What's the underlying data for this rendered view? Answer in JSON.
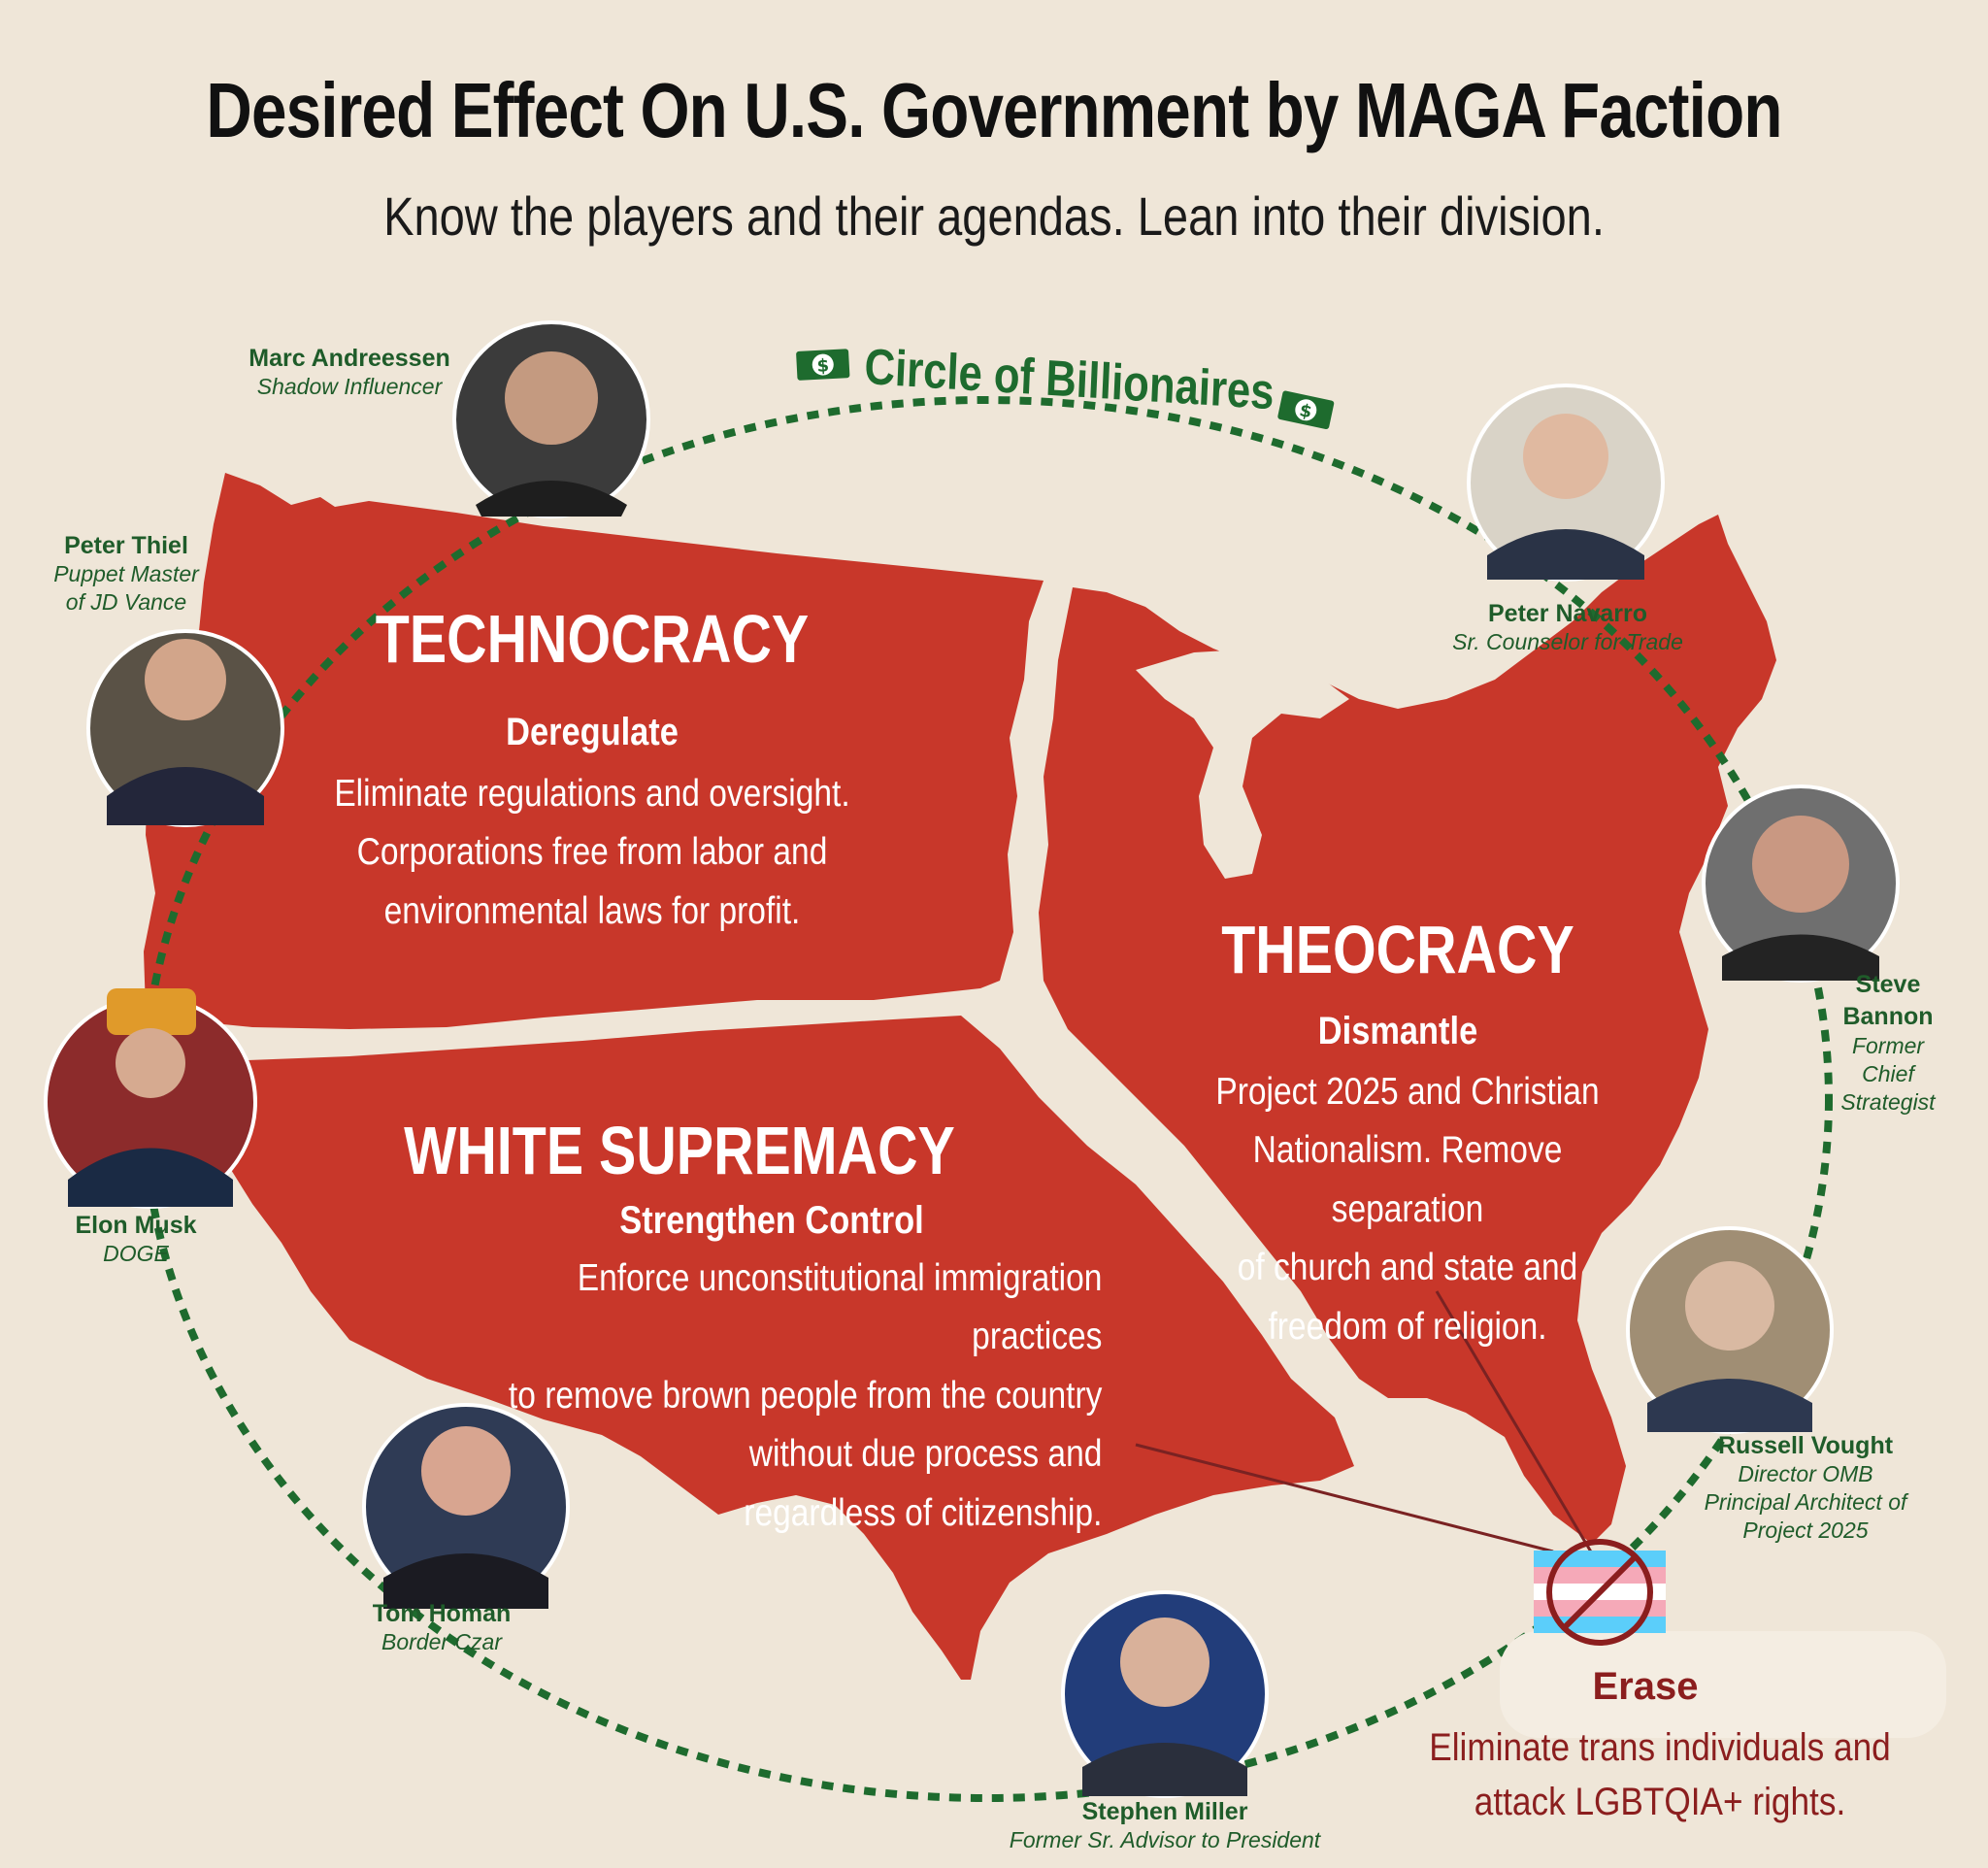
{
  "title": "Desired Effect On U.S. Government by MAGA Faction",
  "subtitle": "Know the players and their agendas. Lean into their division.",
  "circle_label": "Circle of Billionaires",
  "colors": {
    "background": "#efe6d8",
    "map_red": "#c8372a",
    "circle_green": "#1e6b2e",
    "name_green": "#1f5c2a",
    "erase_red": "#8b1e1e"
  },
  "regions": {
    "technocracy": {
      "heading": "TECHNOCRACY",
      "action": "Deregulate",
      "description": "Eliminate regulations and oversight.\nCorporations free from labor and\nenvironmental laws for profit."
    },
    "white_supremacy": {
      "heading": "WHITE SUPREMACY",
      "action": "Strengthen Control",
      "description": "Enforce unconstitutional immigration practices\nto remove brown people from the country\nwithout due process and\nregardless of citizenship."
    },
    "theocracy": {
      "heading": "THEOCRACY",
      "action": "Dismantle",
      "description": "Project 2025 and Christian\nNationalism. Remove separation\nof church and state and\nfreedom of religion."
    }
  },
  "erase": {
    "heading": "Erase",
    "description": "Eliminate trans individuals and\nattack LGBTQIA+ rights.",
    "icon": "crossed-out-trans-flag-icon"
  },
  "people": [
    {
      "id": "andreessen",
      "name": "Marc Andreessen",
      "role": "Shadow Influencer"
    },
    {
      "id": "thiel",
      "name": "Peter Thiel",
      "role": "Puppet Master\nof JD Vance"
    },
    {
      "id": "navarro",
      "name": "Peter Navarro",
      "role": "Sr. Counselor for Trade"
    },
    {
      "id": "bannon",
      "name": "Steve\nBannon",
      "role": "Former\nChief\nStrategist"
    },
    {
      "id": "musk",
      "name": "Elon Musk",
      "role": "DOGE"
    },
    {
      "id": "vought",
      "name": "Russell Vought",
      "role": "Director OMB\nPrincipal Architect of\nProject 2025"
    },
    {
      "id": "homan",
      "name": "Tom Homan",
      "role": "Border Czar"
    },
    {
      "id": "miller",
      "name": "Stephen Miller",
      "role": "Former Sr. Advisor to President"
    }
  ]
}
